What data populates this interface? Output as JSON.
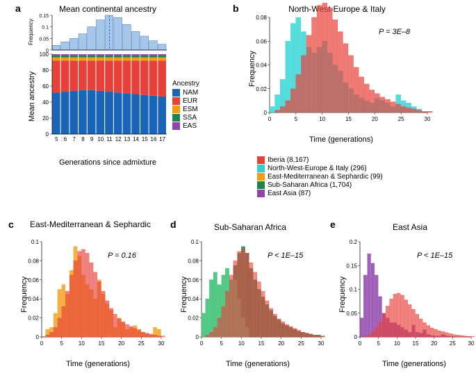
{
  "panel_a": {
    "label": "a",
    "title": "Mean continental ancestry",
    "top_chart": {
      "type": "histogram",
      "x_categories": [
        5,
        6,
        7,
        8,
        9,
        10,
        11,
        12,
        13,
        14,
        15,
        16,
        17
      ],
      "values": [
        0.02,
        0.035,
        0.05,
        0.07,
        0.1,
        0.13,
        0.15,
        0.14,
        0.11,
        0.08,
        0.06,
        0.04,
        0.025
      ],
      "fill": "#a6c8e8",
      "stroke": "#4472c4",
      "ylim": [
        0,
        0.15
      ],
      "yticks": [
        0,
        0.05,
        0.1,
        0.15
      ],
      "ylabel": "Frequency",
      "dashed_line_x": 11,
      "dashed_stroke": "#3366cc"
    },
    "bottom_chart": {
      "type": "stacked-bar",
      "x_categories": [
        5,
        6,
        7,
        8,
        9,
        10,
        11,
        12,
        13,
        14,
        15,
        16,
        17
      ],
      "series_order": [
        "NAM",
        "EUR",
        "ESM",
        "SSA",
        "EAS"
      ],
      "series": {
        "NAM": [
          52,
          53,
          54,
          55,
          55,
          54,
          53,
          52,
          51,
          50,
          49,
          48,
          47
        ],
        "EUR": [
          40,
          39,
          38,
          37,
          37,
          38,
          39,
          40,
          41,
          42,
          43,
          44,
          45
        ],
        "ESM": [
          4,
          4,
          4,
          4,
          4,
          4,
          4,
          4,
          4,
          4,
          4,
          4,
          4
        ],
        "SSA": [
          3,
          3,
          3,
          3,
          3,
          3,
          3,
          3,
          3,
          3,
          3,
          3,
          3
        ],
        "EAS": [
          1,
          1,
          1,
          1,
          1,
          1,
          1,
          1,
          1,
          1,
          1,
          1,
          1
        ]
      },
      "colors": {
        "NAM": "#1b65b8",
        "EUR": "#e8413a",
        "ESM": "#f39c12",
        "SSA": "#1e8449",
        "EAS": "#8e44ad"
      },
      "ylim": [
        0,
        100
      ],
      "yticks": [
        0,
        20,
        40,
        60,
        80,
        100
      ],
      "ylabel": "Mean ancestry",
      "xlabel": "Generations since admixture"
    },
    "legend": {
      "title": "Ancestry",
      "items": [
        {
          "label": "NAM",
          "color": "#1b65b8"
        },
        {
          "label": "EUR",
          "color": "#e8413a"
        },
        {
          "label": "ESM",
          "color": "#f39c12"
        },
        {
          "label": "SSA",
          "color": "#1e8449"
        },
        {
          "label": "EAS",
          "color": "#8e44ad"
        }
      ]
    }
  },
  "comparison_legend": {
    "items": [
      {
        "label": "Iberia (8,167)",
        "color": "#e8413a"
      },
      {
        "label": "North-West-Europe & Italy (296)",
        "color": "#2bd4d4"
      },
      {
        "label": "East-Mediterranean & Sephardic (99)",
        "color": "#f39c12"
      },
      {
        "label": "Sub-Saharan Africa (1,704)",
        "color": "#1e8449"
      },
      {
        "label": "East Asia (87)",
        "color": "#8e44ad"
      }
    ]
  },
  "iberia_series": {
    "x": [
      0,
      1,
      2,
      3,
      4,
      5,
      6,
      7,
      8,
      9,
      10,
      11,
      12,
      13,
      14,
      15,
      16,
      17,
      18,
      19,
      20,
      21,
      22,
      23,
      24,
      25,
      26,
      27,
      28,
      29,
      30
    ],
    "y": [
      0,
      0.002,
      0.005,
      0.01,
      0.02,
      0.032,
      0.048,
      0.065,
      0.08,
      0.09,
      0.092,
      0.088,
      0.078,
      0.068,
      0.058,
      0.048,
      0.038,
      0.03,
      0.024,
      0.019,
      0.016,
      0.013,
      0.011,
      0.009,
      0.007,
      0.005,
      0.004,
      0.003,
      0.002,
      0.001,
      0.001
    ],
    "color": "#e8413a"
  },
  "panel_b": {
    "label": "b",
    "title": "North-West-Europe & Italy",
    "pvalue": "P = 3E–8",
    "ylim": [
      0,
      0.08
    ],
    "yticks": [
      0,
      0.02,
      0.04,
      0.06,
      0.08
    ],
    "xlim": [
      0,
      30
    ],
    "xticks": [
      0,
      5,
      10,
      15,
      20,
      25,
      30
    ],
    "ylabel": "Frequency",
    "xlabel": "Time (generations)",
    "second_series": {
      "x": [
        0,
        1,
        2,
        3,
        4,
        5,
        6,
        7,
        8,
        9,
        10,
        11,
        12,
        13,
        14,
        15,
        16,
        17,
        18,
        19,
        20,
        21,
        22,
        23,
        24,
        25,
        26,
        27,
        28
      ],
      "y": [
        0.005,
        0.015,
        0.028,
        0.06,
        0.075,
        0.08,
        0.068,
        0.055,
        0.05,
        0.055,
        0.06,
        0.05,
        0.04,
        0.035,
        0.025,
        0.02,
        0.015,
        0.012,
        0.01,
        0.008,
        0.012,
        0.01,
        0.008,
        0.005,
        0.015,
        0.01,
        0.008,
        0.005,
        0.003
      ],
      "color": "#2bd4d4"
    }
  },
  "panel_c": {
    "label": "c",
    "title": "East-Mediterranean & Sephardic",
    "pvalue": "P = 0.16",
    "ylim": [
      0,
      0.1
    ],
    "yticks": [
      0,
      0.02,
      0.04,
      0.06,
      0.08,
      0.1
    ],
    "xlim": [
      0,
      30
    ],
    "xticks": [
      0,
      5,
      10,
      15,
      20,
      25,
      30
    ],
    "ylabel": "Frequency",
    "xlabel": "Time (generations)",
    "second_series": {
      "x": [
        1,
        2,
        3,
        4,
        5,
        6,
        7,
        8,
        9,
        10,
        11,
        12,
        13,
        14,
        15,
        16,
        17,
        18,
        19,
        20,
        21,
        22,
        23,
        24,
        25,
        26,
        27,
        28,
        29
      ],
      "y": [
        0.008,
        0.01,
        0.025,
        0.05,
        0.055,
        0.045,
        0.07,
        0.095,
        0.085,
        0.065,
        0.055,
        0.05,
        0.04,
        0.06,
        0.045,
        0.035,
        0.028,
        0.01,
        0.02,
        0.015,
        0.008,
        0.01,
        0.012,
        0.008,
        0.005,
        0.003,
        0.002,
        0.01,
        0.008
      ],
      "color": "#f39c12"
    }
  },
  "panel_d": {
    "label": "d",
    "title": "Sub-Saharan Africa",
    "pvalue": "P < 1E–15",
    "ylim": [
      0,
      0.1
    ],
    "yticks": [
      0,
      0.02,
      0.04,
      0.06,
      0.08,
      0.1
    ],
    "xlim": [
      0,
      30
    ],
    "xticks": [
      0,
      5,
      10,
      15,
      20,
      25,
      30
    ],
    "ylabel": "Frequency",
    "xlabel": "Time (generations)",
    "second_series": {
      "x": [
        0,
        1,
        2,
        3,
        4,
        5,
        6,
        7,
        8,
        9,
        10,
        11,
        12,
        13,
        14,
        15,
        16,
        17,
        18,
        19,
        20,
        21,
        22,
        23,
        24,
        25,
        26,
        27,
        28,
        29,
        30
      ],
      "y": [
        0.025,
        0.04,
        0.06,
        0.068,
        0.055,
        0.065,
        0.072,
        0.06,
        0.075,
        0.088,
        0.095,
        0.088,
        0.072,
        0.06,
        0.05,
        0.042,
        0.034,
        0.028,
        0.022,
        0.018,
        0.014,
        0.012,
        0.01,
        0.008,
        0.006,
        0.005,
        0.004,
        0.003,
        0.002,
        0.002,
        0.001
      ],
      "color": "#1e8449"
    },
    "light_series": {
      "x": [
        0,
        1,
        2,
        3,
        4,
        5,
        6,
        7,
        8,
        9,
        10,
        11
      ],
      "y": [
        0.025,
        0.04,
        0.06,
        0.068,
        0.055,
        0.065,
        0.072,
        0.06,
        0.06,
        0.04,
        0.02,
        0.01
      ],
      "color": "#58d68d"
    }
  },
  "panel_e": {
    "label": "e",
    "title": "East Asia",
    "pvalue": "P < 1E–15",
    "ylim": [
      0,
      0.2
    ],
    "yticks": [
      0,
      0.05,
      0.1,
      0.15,
      0.2
    ],
    "xlim": [
      0,
      30
    ],
    "xticks": [
      0,
      5,
      10,
      15,
      20,
      25,
      30
    ],
    "ylabel": "Frequency",
    "xlabel": "Time (generations)",
    "second_series": {
      "x": [
        0,
        1,
        2,
        3,
        4,
        5,
        6,
        7,
        8,
        9,
        10,
        11,
        12,
        13,
        14,
        15,
        16,
        17,
        18,
        19,
        20,
        21,
        22,
        23,
        24,
        25
      ],
      "y": [
        0.04,
        0.13,
        0.175,
        0.155,
        0.13,
        0.085,
        0.05,
        0.04,
        0.03,
        0.03,
        0.025,
        0.02,
        0.015,
        0.01,
        0.025,
        0.01,
        0.008,
        0.015,
        0.005,
        0.003,
        0.002,
        0.002,
        0.005,
        0.002,
        0.001,
        0.001
      ],
      "color": "#8e44ad"
    }
  }
}
